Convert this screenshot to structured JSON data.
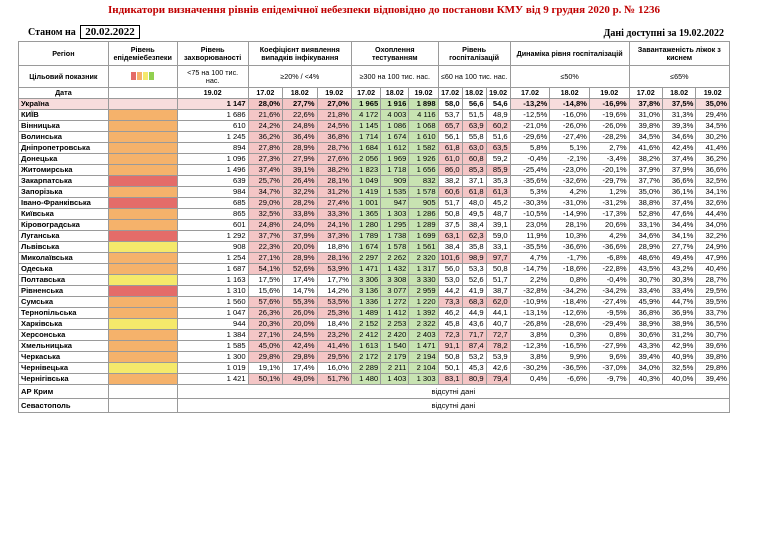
{
  "header": {
    "title": "Індикатори визначення рівнів епідемічної небезпеки відповідно до постанови КМУ від 9 грудня 2020 р. № 1236",
    "state_label": "Станом на",
    "state_date": "20.02.2022",
    "available": "Дані доступні за 19.02.2022"
  },
  "table": {
    "h_region": "Регіон",
    "h_level": "Рівень епідеміебезпеки",
    "h_incidence": "Рівень захворюваності",
    "h_positivity": "Коефіцієнт виявлення випадків інфікування",
    "h_testing": "Охоплення тестуванням",
    "h_hosp": "Рівень госпіталізацій",
    "h_hosp_dyn": "Динаміка рівня госпіталізацій",
    "h_beds": "Завантаженість ліжок з киснем",
    "target_label": "Цільовий показник",
    "t_incidence": "<75 на 100 тис. нас.",
    "t_positivity": "≥20% / <4%",
    "t_testing": "≥300 на 100 тис. нас.",
    "t_hosp": "≤60 на 100 тис. нас.",
    "t_hosp_dyn": "≤50%",
    "t_beds": "≤65%",
    "date_label": "Дата",
    "d_incidence": "19.02",
    "dates": [
      "17.02",
      "18.02",
      "19.02"
    ],
    "legend_colors": [
      "#e46c69",
      "#f5b26b",
      "#f5e96b",
      "#92d050"
    ],
    "colors": {
      "red_level": "#e46c69",
      "orange_level": "#f5b26b",
      "yellow_level": "#f5e96b",
      "green_level": "#92d050",
      "cell_red": "#f4c6c6",
      "cell_green": "#c8e3b2",
      "ua_row": "#f7dcdc"
    },
    "rows": [
      {
        "region": "Україна",
        "level": "",
        "inc": "1 147",
        "pos": [
          "28,0%",
          "27,7%",
          "27,0%"
        ],
        "test": [
          "1 965",
          "1 916",
          "1 898"
        ],
        "hosp": [
          "58,0",
          "56,6",
          "54,6"
        ],
        "dyn": [
          "-13,2%",
          "-14,8%",
          "-16,9%"
        ],
        "beds": [
          "37,8%",
          "37,5%",
          "35,0%"
        ]
      },
      {
        "region": "КИЇВ",
        "level": "orange",
        "inc": "1 686",
        "pos": [
          "21,6%",
          "22,6%",
          "21,8%"
        ],
        "test": [
          "4 172",
          "4 003",
          "4 116"
        ],
        "hosp": [
          "53,7",
          "51,5",
          "48,9"
        ],
        "dyn": [
          "-12,5%",
          "-16,0%",
          "-19,6%"
        ],
        "beds": [
          "31,0%",
          "31,3%",
          "29,4%"
        ]
      },
      {
        "region": "Вінницька",
        "level": "orange",
        "inc": "610",
        "pos": [
          "24,2%",
          "24,8%",
          "24,5%"
        ],
        "test": [
          "1 145",
          "1 086",
          "1 068"
        ],
        "hosp": [
          "65,7",
          "63,9",
          "60,2"
        ],
        "dyn": [
          "-21,0%",
          "-26,0%",
          "-26,0%"
        ],
        "beds": [
          "39,8%",
          "39,3%",
          "34,5%"
        ]
      },
      {
        "region": "Волинська",
        "level": "orange",
        "inc": "1 245",
        "pos": [
          "36,2%",
          "36,4%",
          "36,8%"
        ],
        "test": [
          "1 714",
          "1 674",
          "1 610"
        ],
        "hosp": [
          "56,1",
          "55,8",
          "51,6"
        ],
        "dyn": [
          "-29,6%",
          "-27,4%",
          "-28,2%"
        ],
        "beds": [
          "34,5%",
          "34,6%",
          "30,2%"
        ]
      },
      {
        "region": "Дніпропетровська",
        "level": "orange",
        "inc": "894",
        "pos": [
          "27,8%",
          "28,9%",
          "28,7%"
        ],
        "test": [
          "1 684",
          "1 612",
          "1 582"
        ],
        "hosp": [
          "61,8",
          "63,0",
          "63,5"
        ],
        "dyn": [
          "5,8%",
          "5,1%",
          "2,7%"
        ],
        "beds": [
          "41,6%",
          "42,4%",
          "41,4%"
        ]
      },
      {
        "region": "Донецька",
        "level": "orange",
        "inc": "1 096",
        "pos": [
          "27,3%",
          "27,9%",
          "27,6%"
        ],
        "test": [
          "2 056",
          "1 969",
          "1 926"
        ],
        "hosp": [
          "61,0",
          "60,8",
          "59,2"
        ],
        "dyn": [
          "-0,4%",
          "-2,1%",
          "-3,4%"
        ],
        "beds": [
          "38,2%",
          "37,4%",
          "36,2%"
        ]
      },
      {
        "region": "Житомирська",
        "level": "orange",
        "inc": "1 496",
        "pos": [
          "37,4%",
          "39,1%",
          "38,2%"
        ],
        "test": [
          "1 823",
          "1 718",
          "1 656"
        ],
        "hosp": [
          "86,0",
          "85,3",
          "85,9"
        ],
        "dyn": [
          "-25,4%",
          "-23,0%",
          "-20,1%"
        ],
        "beds": [
          "37,9%",
          "37,9%",
          "36,6%"
        ]
      },
      {
        "region": "Закарпатська",
        "level": "red",
        "inc": "639",
        "pos": [
          "25,7%",
          "26,4%",
          "28,1%"
        ],
        "test": [
          "1 049",
          "909",
          "832"
        ],
        "hosp": [
          "38,2",
          "37,1",
          "35,3"
        ],
        "dyn": [
          "-35,6%",
          "-32,6%",
          "-29,7%"
        ],
        "beds": [
          "37,7%",
          "36,6%",
          "32,5%"
        ]
      },
      {
        "region": "Запорізька",
        "level": "orange",
        "inc": "984",
        "pos": [
          "34,7%",
          "32,2%",
          "31,2%"
        ],
        "test": [
          "1 419",
          "1 535",
          "1 578"
        ],
        "hosp": [
          "60,6",
          "61,8",
          "61,3"
        ],
        "dyn": [
          "5,3%",
          "4,2%",
          "1,2%"
        ],
        "beds": [
          "35,0%",
          "36,1%",
          "34,1%"
        ]
      },
      {
        "region": "Івано-Франківська",
        "level": "red",
        "inc": "685",
        "pos": [
          "29,0%",
          "28,2%",
          "27,4%"
        ],
        "test": [
          "1 001",
          "947",
          "905"
        ],
        "hosp": [
          "51,7",
          "48,0",
          "45,2"
        ],
        "dyn": [
          "-30,3%",
          "-31,0%",
          "-31,2%"
        ],
        "beds": [
          "38,8%",
          "37,4%",
          "32,6%"
        ]
      },
      {
        "region": "Київська",
        "level": "orange",
        "inc": "865",
        "pos": [
          "32,5%",
          "33,8%",
          "33,3%"
        ],
        "test": [
          "1 365",
          "1 303",
          "1 286"
        ],
        "hosp": [
          "50,8",
          "49,5",
          "48,7"
        ],
        "dyn": [
          "-10,5%",
          "-14,9%",
          "-17,3%"
        ],
        "beds": [
          "52,8%",
          "47,6%",
          "44,4%"
        ]
      },
      {
        "region": "Кіровоградська",
        "level": "orange",
        "inc": "601",
        "pos": [
          "24,8%",
          "24,0%",
          "24,1%"
        ],
        "test": [
          "1 280",
          "1 295",
          "1 289"
        ],
        "hosp": [
          "37,5",
          "38,4",
          "39,1"
        ],
        "dyn": [
          "23,0%",
          "28,1%",
          "20,6%"
        ],
        "beds": [
          "33,1%",
          "34,4%",
          "34,0%"
        ]
      },
      {
        "region": "Луганська",
        "level": "red",
        "inc": "1 292",
        "pos": [
          "37,7%",
          "37,9%",
          "37,3%"
        ],
        "test": [
          "1 789",
          "1 738",
          "1 699"
        ],
        "hosp": [
          "63,1",
          "62,3",
          "59,0"
        ],
        "dyn": [
          "11,9%",
          "10,3%",
          "4,2%"
        ],
        "beds": [
          "34,6%",
          "34,1%",
          "32,2%"
        ]
      },
      {
        "region": "Львівська",
        "level": "yellow",
        "inc": "908",
        "pos": [
          "22,3%",
          "20,0%",
          "18,8%"
        ],
        "test": [
          "1 674",
          "1 578",
          "1 561"
        ],
        "hosp": [
          "38,4",
          "35,8",
          "33,1"
        ],
        "dyn": [
          "-35,5%",
          "-36,6%",
          "-36,6%"
        ],
        "beds": [
          "28,9%",
          "27,7%",
          "24,9%"
        ]
      },
      {
        "region": "Миколаївська",
        "level": "orange",
        "inc": "1 254",
        "pos": [
          "27,1%",
          "28,9%",
          "28,1%"
        ],
        "test": [
          "2 297",
          "2 262",
          "2 320"
        ],
        "hosp": [
          "101,6",
          "98,9",
          "97,7"
        ],
        "dyn": [
          "4,7%",
          "-1,7%",
          "-6,8%"
        ],
        "beds": [
          "48,6%",
          "49,4%",
          "47,9%"
        ]
      },
      {
        "region": "Одеська",
        "level": "orange",
        "inc": "1 687",
        "pos": [
          "54,1%",
          "52,6%",
          "53,9%"
        ],
        "test": [
          "1 471",
          "1 432",
          "1 317"
        ],
        "hosp": [
          "56,0",
          "53,3",
          "50,8"
        ],
        "dyn": [
          "-14,7%",
          "-18,6%",
          "-22,8%"
        ],
        "beds": [
          "43,5%",
          "43,2%",
          "40,4%"
        ]
      },
      {
        "region": "Полтавська",
        "level": "yellow",
        "inc": "1 163",
        "pos": [
          "17,5%",
          "17,4%",
          "17,7%"
        ],
        "test": [
          "3 306",
          "3 308",
          "3 330"
        ],
        "hosp": [
          "53,0",
          "52,6",
          "51,7"
        ],
        "dyn": [
          "2,2%",
          "0,8%",
          "-0,4%"
        ],
        "beds": [
          "30,7%",
          "30,3%",
          "28,7%"
        ]
      },
      {
        "region": "Рівненська",
        "level": "red",
        "inc": "1 310",
        "pos": [
          "15,6%",
          "14,7%",
          "14,2%"
        ],
        "test": [
          "3 136",
          "3 077",
          "2 959"
        ],
        "hosp": [
          "44,2",
          "41,9",
          "38,7"
        ],
        "dyn": [
          "-32,8%",
          "-34,2%",
          "-34,2%"
        ],
        "beds": [
          "33,4%",
          "33,4%",
          "29,5%"
        ]
      },
      {
        "region": "Сумська",
        "level": "orange",
        "inc": "1 560",
        "pos": [
          "57,6%",
          "55,3%",
          "53,5%"
        ],
        "test": [
          "1 336",
          "1 272",
          "1 220"
        ],
        "hosp": [
          "73,3",
          "68,3",
          "62,0"
        ],
        "dyn": [
          "-10,9%",
          "-18,4%",
          "-27,4%"
        ],
        "beds": [
          "45,9%",
          "44,7%",
          "39,5%"
        ]
      },
      {
        "region": "Тернопільська",
        "level": "orange",
        "inc": "1 047",
        "pos": [
          "26,3%",
          "26,0%",
          "25,3%"
        ],
        "test": [
          "1 489",
          "1 412",
          "1 392"
        ],
        "hosp": [
          "46,2",
          "44,9",
          "44,1"
        ],
        "dyn": [
          "-13,1%",
          "-12,6%",
          "-9,5%"
        ],
        "beds": [
          "36,8%",
          "36,9%",
          "33,7%"
        ]
      },
      {
        "region": "Харківська",
        "level": "yellow",
        "inc": "944",
        "pos": [
          "20,3%",
          "20,0%",
          "18,4%"
        ],
        "test": [
          "2 152",
          "2 253",
          "2 322"
        ],
        "hosp": [
          "45,8",
          "43,6",
          "40,7"
        ],
        "dyn": [
          "-26,8%",
          "-28,6%",
          "-29,4%"
        ],
        "beds": [
          "38,9%",
          "38,9%",
          "36,5%"
        ]
      },
      {
        "region": "Херсонська",
        "level": "orange",
        "inc": "1 384",
        "pos": [
          "27,1%",
          "24,5%",
          "23,2%"
        ],
        "test": [
          "2 412",
          "2 420",
          "2 403"
        ],
        "hosp": [
          "72,3",
          "71,7",
          "72,7"
        ],
        "dyn": [
          "3,8%",
          "0,3%",
          "0,8%"
        ],
        "beds": [
          "30,6%",
          "31,2%",
          "30,7%"
        ]
      },
      {
        "region": "Хмельницька",
        "level": "orange",
        "inc": "1 585",
        "pos": [
          "45,0%",
          "42,4%",
          "41,4%"
        ],
        "test": [
          "1 613",
          "1 540",
          "1 471"
        ],
        "hosp": [
          "91,1",
          "87,4",
          "78,2"
        ],
        "dyn": [
          "-12,3%",
          "-16,5%",
          "-27,9%"
        ],
        "beds": [
          "43,3%",
          "42,9%",
          "39,6%"
        ]
      },
      {
        "region": "Черкаська",
        "level": "orange",
        "inc": "1 300",
        "pos": [
          "29,8%",
          "29,8%",
          "29,5%"
        ],
        "test": [
          "2 172",
          "2 179",
          "2 194"
        ],
        "hosp": [
          "50,8",
          "53,2",
          "53,9"
        ],
        "dyn": [
          "3,8%",
          "9,9%",
          "9,6%"
        ],
        "beds": [
          "39,4%",
          "40,9%",
          "39,8%"
        ]
      },
      {
        "region": "Чернівецька",
        "level": "yellow",
        "inc": "1 019",
        "pos": [
          "19,1%",
          "17,4%",
          "16,0%"
        ],
        "test": [
          "2 289",
          "2 211",
          "2 104"
        ],
        "hosp": [
          "50,1",
          "45,3",
          "42,6"
        ],
        "dyn": [
          "-30,2%",
          "-36,5%",
          "-37,0%"
        ],
        "beds": [
          "34,0%",
          "32,5%",
          "29,8%"
        ]
      },
      {
        "region": "Чернігівська",
        "level": "orange",
        "inc": "1 421",
        "pos": [
          "50,1%",
          "49,0%",
          "51,7%"
        ],
        "test": [
          "1 480",
          "1 403",
          "1 303"
        ],
        "hosp": [
          "83,1",
          "80,9",
          "79,4"
        ],
        "dyn": [
          "0,4%",
          "-6,6%",
          "-9,7%"
        ],
        "beds": [
          "40,3%",
          "40,0%",
          "39,4%"
        ]
      }
    ],
    "nodata_rows": [
      {
        "region": "АР Крим",
        "text": "відсутні дані"
      },
      {
        "region": "Севастополь",
        "text": "відсутні дані"
      }
    ]
  }
}
